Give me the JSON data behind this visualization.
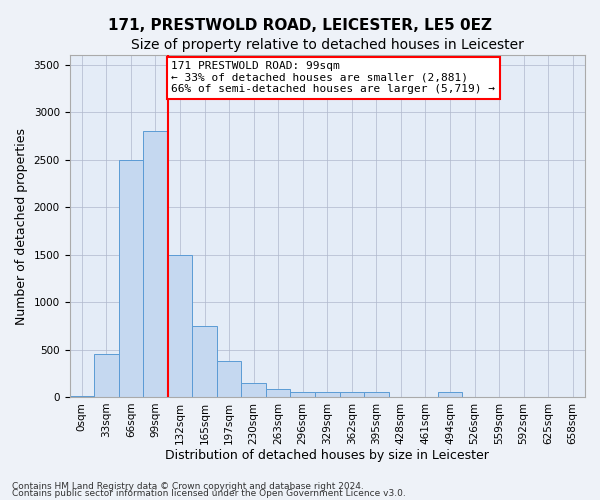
{
  "title": "171, PRESTWOLD ROAD, LEICESTER, LE5 0EZ",
  "subtitle": "Size of property relative to detached houses in Leicester",
  "xlabel": "Distribution of detached houses by size in Leicester",
  "ylabel": "Number of detached properties",
  "bin_labels": [
    "0sqm",
    "33sqm",
    "66sqm",
    "99sqm",
    "132sqm",
    "165sqm",
    "197sqm",
    "230sqm",
    "263sqm",
    "296sqm",
    "329sqm",
    "362sqm",
    "395sqm",
    "428sqm",
    "461sqm",
    "494sqm",
    "526sqm",
    "559sqm",
    "592sqm",
    "625sqm",
    "658sqm"
  ],
  "bar_values": [
    5,
    450,
    2500,
    2800,
    1500,
    750,
    375,
    145,
    80,
    50,
    50,
    50,
    50,
    0,
    0,
    50,
    0,
    0,
    0,
    0,
    0
  ],
  "bar_color": "#c5d8f0",
  "bar_edge_color": "#5b9bd5",
  "vline_x_index": 3,
  "vline_color": "red",
  "annotation_text": "171 PRESTWOLD ROAD: 99sqm\n← 33% of detached houses are smaller (2,881)\n66% of semi-detached houses are larger (5,719) →",
  "annotation_box_color": "white",
  "annotation_box_edge_color": "red",
  "footnote1": "Contains HM Land Registry data © Crown copyright and database right 2024.",
  "footnote2": "Contains public sector information licensed under the Open Government Licence v3.0.",
  "ylim": [
    0,
    3600
  ],
  "yticks": [
    0,
    500,
    1000,
    1500,
    2000,
    2500,
    3000,
    3500
  ],
  "title_fontsize": 11,
  "subtitle_fontsize": 10,
  "axis_label_fontsize": 9,
  "tick_fontsize": 7.5,
  "annotation_fontsize": 8,
  "footnote_fontsize": 6.5,
  "background_color": "#eef2f8",
  "plot_bg_color": "#e4ecf7"
}
